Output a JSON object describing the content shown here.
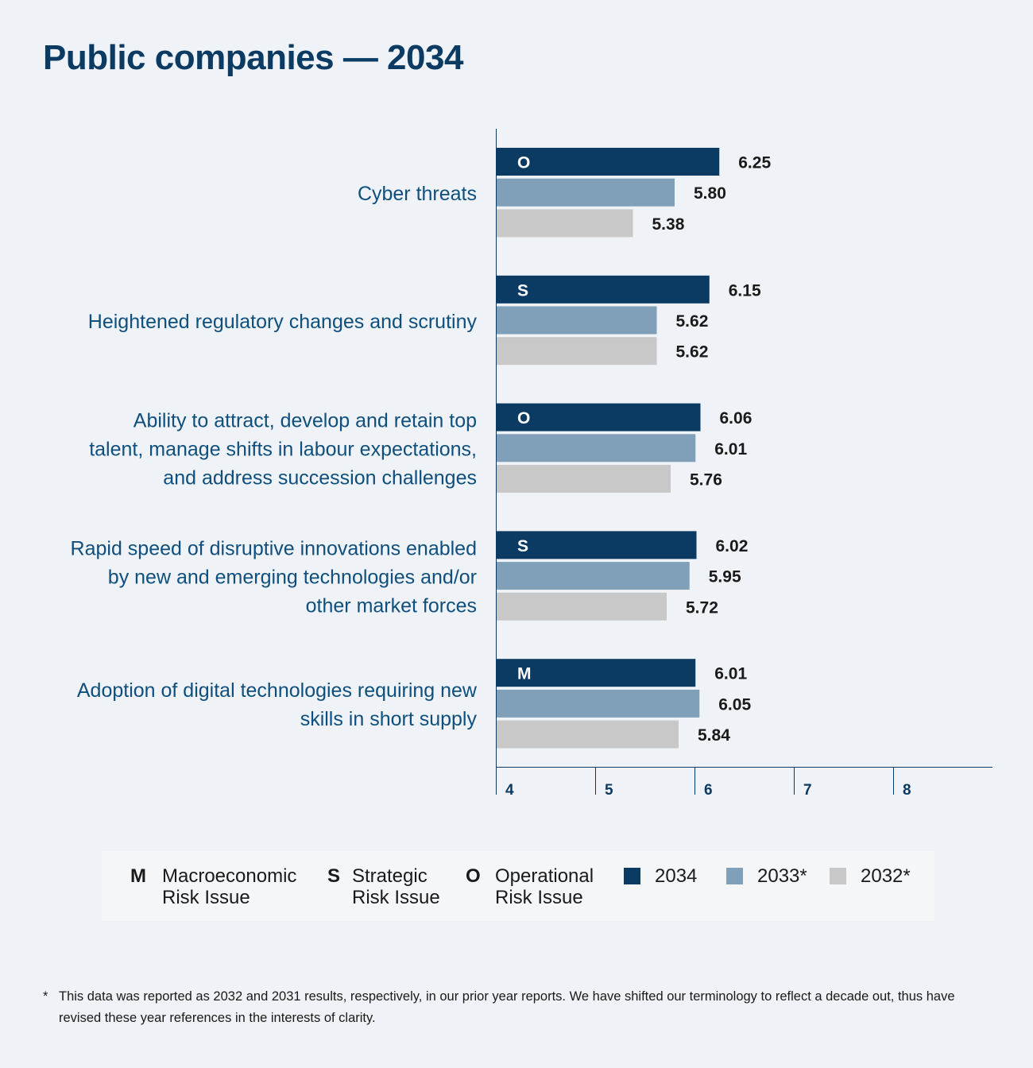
{
  "title": "Public companies — 2034",
  "colors": {
    "y2034": "#0b3a63",
    "y2033": "#7fa0b8",
    "y2032": "#c8c8c8",
    "label_text": "#0e4f7d",
    "background": "#eff2f6"
  },
  "chart_data": {
    "type": "bar",
    "orientation": "horizontal",
    "categories": [
      [
        "Cyber threats"
      ],
      [
        "Heightened regulatory changes and scrutiny"
      ],
      [
        "Ability to attract, develop and retain top",
        "talent, manage shifts in labour expectations,",
        "and address succession challenges"
      ],
      [
        "Rapid speed of disruptive innovations enabled",
        "by new and emerging technologies and/or",
        "other market forces"
      ],
      [
        "Adoption of digital technologies requiring new",
        "skills in short supply"
      ]
    ],
    "risk_type": [
      "O",
      "S",
      "O",
      "S",
      "M"
    ],
    "series": [
      {
        "name": "2034",
        "values": [
          6.25,
          6.15,
          6.06,
          6.02,
          6.01
        ]
      },
      {
        "name": "2033*",
        "values": [
          5.8,
          5.62,
          6.01,
          5.95,
          6.05
        ]
      },
      {
        "name": "2032*",
        "values": [
          5.38,
          5.62,
          5.76,
          5.72,
          5.84
        ]
      }
    ],
    "value_labels": [
      [
        "6.25",
        "6.15",
        "6.06",
        "6.02",
        "6.01"
      ],
      [
        "5.80",
        "5.62",
        "6.01",
        "5.95",
        "6.05"
      ],
      [
        "5.38",
        "5.62",
        "5.76",
        "5.72",
        "5.84"
      ]
    ],
    "xlim": [
      4,
      9
    ],
    "xticks": [
      "4",
      "5",
      "6",
      "7",
      "8"
    ],
    "legend_position": "bottom"
  },
  "legend": {
    "items": [
      {
        "key": "M",
        "line1": "Macroeconomic",
        "line2": "Risk Issue"
      },
      {
        "key": "S",
        "line1": "Strategic",
        "line2": "Risk Issue"
      },
      {
        "key": "O",
        "line1": "Operational",
        "line2": "Risk Issue"
      }
    ],
    "years": [
      "2034",
      "2033*",
      "2032*"
    ]
  },
  "footnote": {
    "marker": "*",
    "text": "This data was reported as 2032 and 2031 results, respectively, in our prior year reports. We have shifted our terminology to reflect a decade out, thus have revised these year references in the interests of clarity."
  }
}
